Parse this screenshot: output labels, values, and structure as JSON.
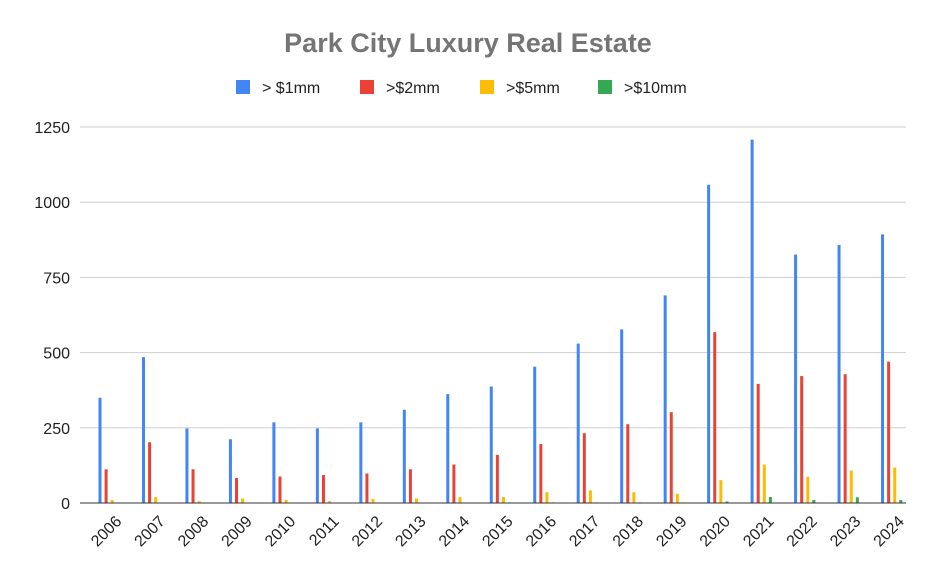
{
  "chart_data": {
    "type": "bar",
    "title": "Park City Luxury Real Estate",
    "xlabel": "",
    "ylabel": "",
    "ylim": [
      0,
      1250
    ],
    "yticks": [
      "0",
      "250",
      "500",
      "750",
      "1000",
      "1250"
    ],
    "ytick_values": [
      0,
      250,
      500,
      750,
      1000,
      1250
    ],
    "grid": true,
    "legend_position": "top",
    "categories": [
      "2006",
      "2007",
      "2008",
      "2009",
      "2010",
      "2011",
      "2012",
      "2013",
      "2014",
      "2015",
      "2016",
      "2017",
      "2018",
      "2019",
      "2020",
      "2021",
      "2022",
      "2023",
      "2024"
    ],
    "series": [
      {
        "name": "> $1mm",
        "color": "#4285f4",
        "values": [
          350,
          485,
          248,
          212,
          268,
          248,
          268,
          310,
          362,
          387,
          453,
          530,
          577,
          690,
          1058,
          1208,
          826,
          858,
          893
        ]
      },
      {
        "name": ">$2mm",
        "color": "#ea4335",
        "values": [
          112,
          202,
          112,
          83,
          88,
          93,
          98,
          112,
          128,
          160,
          196,
          232,
          262,
          302,
          568,
          396,
          422,
          428,
          470
        ]
      },
      {
        "name": ">$5mm",
        "color": "#fbbc04",
        "values": [
          10,
          20,
          6,
          15,
          10,
          6,
          14,
          15,
          20,
          20,
          36,
          42,
          36,
          31,
          76,
          128,
          87,
          108,
          118
        ]
      },
      {
        "name": ">$10mm",
        "color": "#34a853",
        "values": [
          1,
          1,
          0,
          1,
          1,
          0,
          1,
          1,
          1,
          2,
          2,
          2,
          2,
          2,
          5,
          20,
          10,
          19,
          10
        ]
      }
    ]
  }
}
